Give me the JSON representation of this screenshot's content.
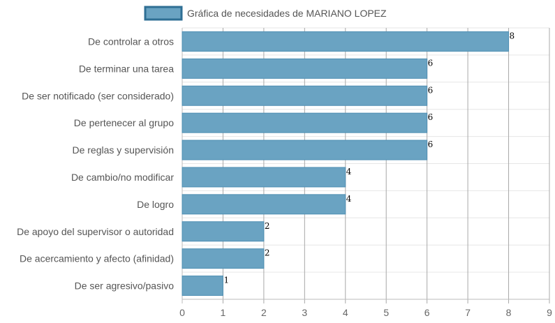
{
  "chart_data": {
    "type": "bar",
    "orientation": "horizontal",
    "legend": {
      "label": "Gráfica de necesidades de MARIANO LOPEZ",
      "position": "top-center"
    },
    "categories": [
      "De controlar a otros",
      "De terminar una tarea",
      "De ser notificado (ser considerado)",
      "De pertenecer al grupo",
      "De reglas y supervisión",
      "De cambio/no modificar",
      "De logro",
      "De apoyo del supervisor o autoridad",
      "De acercamiento y afecto (afinidad)",
      "De ser agresivo/pasivo"
    ],
    "series": [
      {
        "name": "Gráfica de necesidades de MARIANO LOPEZ",
        "values": [
          8,
          6,
          6,
          6,
          6,
          4,
          4,
          2,
          2,
          1
        ]
      }
    ],
    "data_labels": [
      "8",
      "6",
      "6",
      "6",
      "6",
      "4",
      "4",
      "2",
      "2",
      "1"
    ],
    "xlim": [
      0,
      9
    ],
    "x_ticks": [
      "0",
      "1",
      "2",
      "3",
      "4",
      "5",
      "6",
      "7",
      "8",
      "9"
    ],
    "grid": true,
    "colors": {
      "bar_fill": "#6aa3c2",
      "bar_stroke": "#4f8fb3",
      "legend_fill": "#6aa3c2",
      "legend_stroke": "#2f6f94",
      "grid_vertical": "#a8a8a8",
      "grid_horizontal": "#e6e6e6",
      "axis": "#bbbbbb"
    }
  }
}
